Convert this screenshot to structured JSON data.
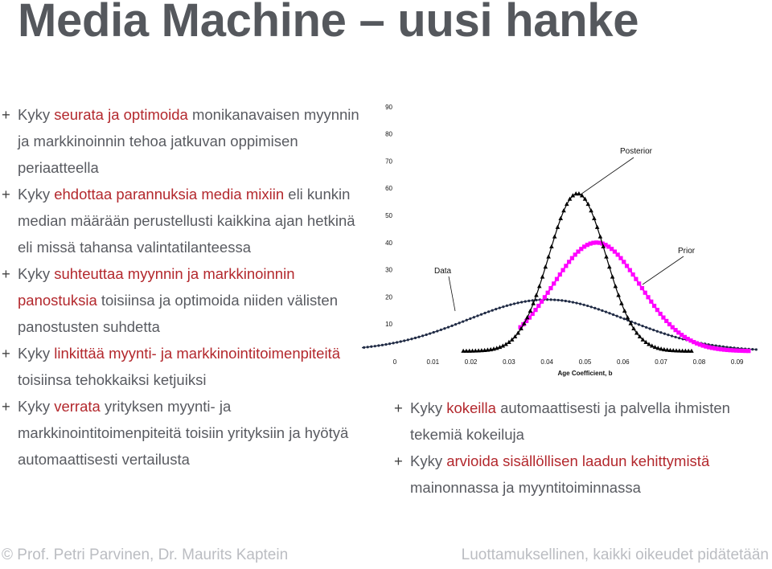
{
  "title": "Media Machine – uusi hanke",
  "left_bullets": [
    {
      "marker": "+",
      "parts": [
        {
          "text": "Kyky ",
          "hl": false
        },
        {
          "text": "seurata ja optimoida",
          "hl": true
        },
        {
          "text": " monikanavaisen myynnin ja markkinoinnin tehoa jatkuvan oppimisen periaatteella",
          "hl": false
        }
      ]
    },
    {
      "marker": "+",
      "parts": [
        {
          "text": "Kyky ",
          "hl": false
        },
        {
          "text": "ehdottaa parannuksia media mixiin",
          "hl": true
        },
        {
          "text": " eli kunkin median määrään perustellusti kaikkina ajan hetkinä eli missä tahansa valintatilanteessa",
          "hl": false
        }
      ]
    },
    {
      "marker": "+",
      "parts": [
        {
          "text": "Kyky ",
          "hl": false
        },
        {
          "text": "suhteuttaa myynnin ja markkinoinnin panostuksia",
          "hl": true
        },
        {
          "text": " toisiinsa ja optimoida niiden välisten panostusten suhdetta",
          "hl": false
        }
      ]
    },
    {
      "marker": "+",
      "parts": [
        {
          "text": "Kyky ",
          "hl": false
        },
        {
          "text": "linkittää myynti- ja markkinointitoimenpiteitä",
          "hl": true
        },
        {
          "text": " toisiinsa tehokkaiksi ketjuiksi",
          "hl": false
        }
      ]
    },
    {
      "marker": "+",
      "parts": [
        {
          "text": "Kyky ",
          "hl": false
        },
        {
          "text": "verrata",
          "hl": true
        },
        {
          "text": " yrityksen myynti- ja markkinointitoimenpiteitä toisiin yrityksiin ja hyötyä automaattisesti vertailusta",
          "hl": false
        }
      ]
    }
  ],
  "right_bullets": [
    {
      "marker": "+",
      "parts": [
        {
          "text": "Kyky ",
          "hl": false
        },
        {
          "text": "kokeilla",
          "hl": true
        },
        {
          "text": " automaattisesti ja palvella ihmisten tekemiä kokeiluja",
          "hl": false
        }
      ]
    },
    {
      "marker": "+",
      "parts": [
        {
          "text": "Kyky ",
          "hl": false
        },
        {
          "text": "arvioida sisällöllisen laadun kehittymistä",
          "hl": true
        },
        {
          "text": " mainonnassa ja myyntitoiminnassa",
          "hl": false
        }
      ]
    }
  ],
  "colors": {
    "highlight": "#b3282d",
    "text": "#595b61",
    "title": "#55585d",
    "footer": "#bbbdc2",
    "prior": "#ff00ff",
    "posterior": "#000000",
    "data": "#1f2a44"
  },
  "chart_data": {
    "type": "line",
    "xlabel": "Age Coefficient, b",
    "ylabel": "",
    "x_ticks": [
      "0",
      "0.01",
      "0.02",
      "0.03",
      "0.04",
      "0.05",
      "0.06",
      "0.07",
      "0.08",
      "0.09"
    ],
    "y_ticks": [
      "10",
      "20",
      "30",
      "40",
      "50",
      "60",
      "70",
      "80",
      "90"
    ],
    "xlim": [
      -0.01,
      0.095
    ],
    "ylim": [
      0,
      90
    ],
    "series": [
      {
        "name": "Data",
        "mean": 0.04,
        "sd": 0.021,
        "peak": 19,
        "x_range": [
          -0.011,
          0.095
        ],
        "color": "#1f2a44",
        "marker": "dot"
      },
      {
        "name": "Prior",
        "mean": 0.053,
        "sd": 0.0115,
        "peak": 40,
        "x_range": [
          0.033,
          0.093
        ],
        "color": "#ff00ff",
        "marker": "square"
      },
      {
        "name": "Posterior",
        "mean": 0.048,
        "sd": 0.0075,
        "peak": 58,
        "x_range": [
          0.018,
          0.078
        ],
        "color": "#000000",
        "marker": "triangle"
      }
    ],
    "annotations": [
      "Posterior",
      "Prior",
      "Data"
    ]
  },
  "footer": {
    "left": "© Prof. Petri Parvinen, Dr. Maurits Kaptein",
    "right": "Luottamuksellinen, kaikki oikeudet pidätetään"
  }
}
